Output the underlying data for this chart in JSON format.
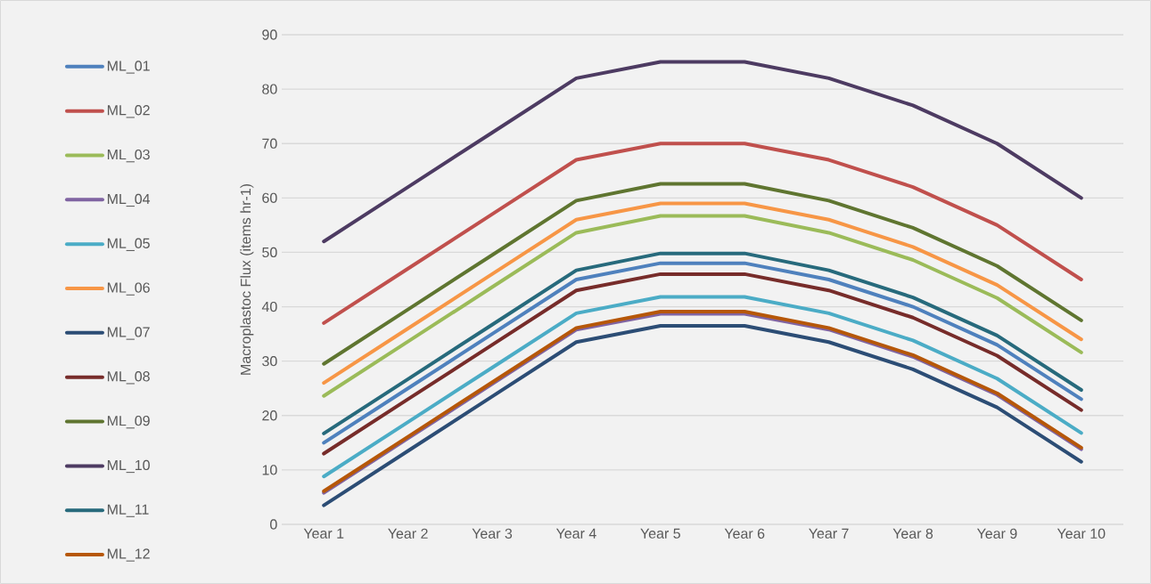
{
  "chart_data": {
    "type": "line",
    "ylabel": "Macroplastoc Flux (items hr-1)",
    "categories": [
      "Year 1",
      "Year 2",
      "Year 3",
      "Year 4",
      "Year 5",
      "Year 6",
      "Year 7",
      "Year 8",
      "Year 9",
      "Year 10"
    ],
    "ylim": [
      0,
      90
    ],
    "yticks": [
      0,
      10,
      20,
      30,
      40,
      50,
      60,
      70,
      80,
      90
    ],
    "grid": "y",
    "legend": "left",
    "marker": "none",
    "line_style": "solid",
    "series": [
      {
        "name": "ML_01",
        "color": "#4f81bd",
        "values": [
          15,
          25,
          35,
          45,
          48,
          48,
          45,
          40,
          33,
          23
        ]
      },
      {
        "name": "ML_02",
        "color": "#c0504d",
        "values": [
          37,
          47,
          57,
          67,
          70,
          70,
          67,
          62,
          55,
          45
        ]
      },
      {
        "name": "ML_03",
        "color": "#9bbb59",
        "values": [
          23.6,
          33.6,
          43.6,
          53.6,
          56.7,
          56.7,
          53.6,
          48.6,
          41.6,
          31.6
        ]
      },
      {
        "name": "ML_04",
        "color": "#8064a2",
        "values": [
          5.8,
          15.8,
          25.8,
          35.8,
          38.7,
          38.7,
          35.8,
          30.8,
          23.8,
          13.8
        ]
      },
      {
        "name": "ML_05",
        "color": "#4bacc6",
        "values": [
          8.8,
          18.8,
          28.8,
          38.8,
          41.8,
          41.8,
          38.8,
          33.8,
          26.8,
          16.8
        ]
      },
      {
        "name": "ML_06",
        "color": "#f79646",
        "values": [
          26,
          36,
          46,
          56,
          59,
          59,
          56,
          51,
          44,
          34
        ]
      },
      {
        "name": "ML_07",
        "color": "#2c4d75",
        "values": [
          3.5,
          13.5,
          23.5,
          33.5,
          36.5,
          36.5,
          33.5,
          28.5,
          21.5,
          11.5
        ]
      },
      {
        "name": "ML_08",
        "color": "#772c2a",
        "values": [
          13,
          23,
          33,
          43,
          46,
          46,
          43,
          38,
          31,
          21
        ]
      },
      {
        "name": "ML_09",
        "color": "#5f7530",
        "values": [
          29.5,
          39.5,
          49.5,
          59.5,
          62.6,
          62.6,
          59.5,
          54.5,
          47.5,
          37.5
        ]
      },
      {
        "name": "ML_10",
        "color": "#4d3b62",
        "values": [
          52,
          62,
          72,
          82,
          85,
          85,
          82,
          77,
          70,
          60
        ]
      },
      {
        "name": "ML_11",
        "color": "#276a7c",
        "values": [
          16.7,
          26.7,
          36.7,
          46.7,
          49.8,
          49.8,
          46.7,
          41.7,
          34.7,
          24.7
        ]
      },
      {
        "name": "ML_12",
        "color": "#b65708",
        "values": [
          6.1,
          16.1,
          26.1,
          36.1,
          39.1,
          39.1,
          36.1,
          31.1,
          24.1,
          14.1
        ]
      }
    ]
  }
}
